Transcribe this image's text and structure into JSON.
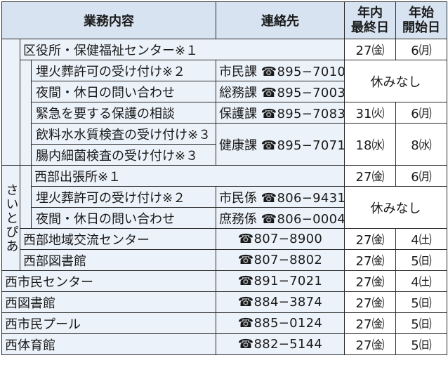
{
  "header": {
    "content": "業務内容",
    "contact": "連絡先",
    "year_end_line1": "年内",
    "year_end_line2": "最終日",
    "year_start_line1": "年始",
    "year_start_line2": "開始日"
  },
  "ward": {
    "title": "区役所・保健福祉センター※１",
    "end": "27㈮",
    "start": "6㈪",
    "items": [
      {
        "label": "埋火葬許可の受け付け※２",
        "dept": "市民課",
        "tel": "☎895−7010"
      },
      {
        "label": "夜間・休日の問い合わせ",
        "dept": "総務課",
        "tel": "☎895−7003"
      },
      {
        "label": "緊急を要する保護の相談",
        "dept": "保護課",
        "tel": "☎895−7083",
        "end": "31㈫",
        "start": "6㈪"
      },
      {
        "label": "飲料水水質検査の受け付け※３"
      },
      {
        "label": "腸内細菌検査の受け付け※３",
        "dept": "健康課",
        "tel": "☎895−7071",
        "end": "18㈬",
        "start": "8㈬"
      }
    ],
    "no_break": "休みなし"
  },
  "saitopia": {
    "label": "さいとぴあ",
    "branch_title": "西部出張所※１",
    "branch_end": "27㈮",
    "branch_start": "6㈪",
    "branch_items": [
      {
        "label": "埋火葬許可の受け付け※２",
        "dept": "市民係",
        "tel": "☎806−9431"
      },
      {
        "label": "夜間・休日の問い合わせ",
        "dept": "庶務係",
        "tel": "☎806−0004"
      }
    ],
    "branch_no_break": "休みなし",
    "facilities": [
      {
        "name": "西部地域交流センター",
        "tel": "☎807−8900",
        "end": "27㈮",
        "start": "4㈯"
      },
      {
        "name": "西部図書館",
        "tel": "☎807−8802",
        "end": "27㈮",
        "start": "5㈰"
      }
    ]
  },
  "others": [
    {
      "name": "西市民センター",
      "tel": "☎891−7021",
      "end": "27㈮",
      "start": "4㈯"
    },
    {
      "name": "西図書館",
      "tel": "☎884−3874",
      "end": "27㈮",
      "start": "5㈰"
    },
    {
      "name": "西市民プール",
      "tel": "☎885−0124",
      "end": "27㈮",
      "start": "5㈰"
    },
    {
      "name": "西体育館",
      "tel": "☎882−5144",
      "end": "27㈮",
      "start": "5㈰"
    }
  ],
  "colors": {
    "header_bg": "#d7e3f1",
    "row_tint": "#ecf2f9",
    "border": "#2b2b2b"
  }
}
